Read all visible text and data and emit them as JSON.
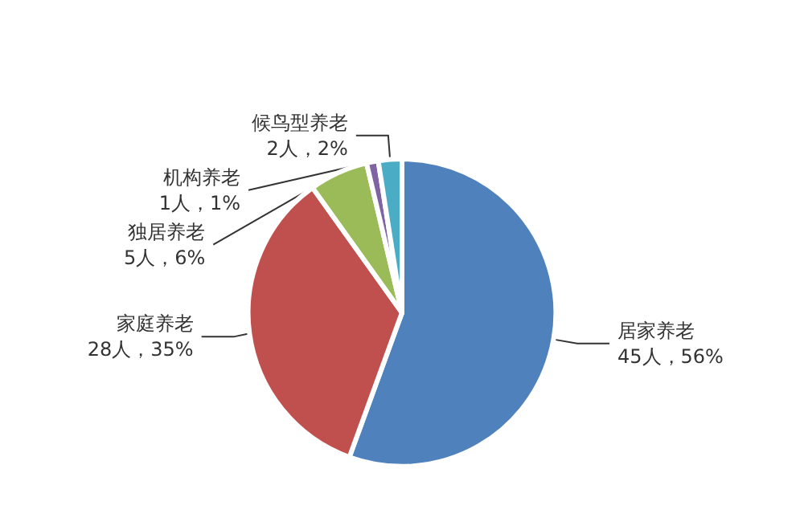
{
  "chart_data": {
    "type": "pie",
    "categories": [
      "居家养老",
      "家庭养老",
      "独居养老",
      "机构养老",
      "候鸟型养老"
    ],
    "values": [
      45,
      28,
      5,
      1,
      2
    ],
    "value_labels": [
      "45人，56%",
      "28人，35%",
      "5人，6%",
      "1人，1%",
      "2人，2%"
    ],
    "colors": [
      "#4f81bd",
      "#c0504d",
      "#9bbb59",
      "#8064a2",
      "#4bacc6"
    ]
  }
}
